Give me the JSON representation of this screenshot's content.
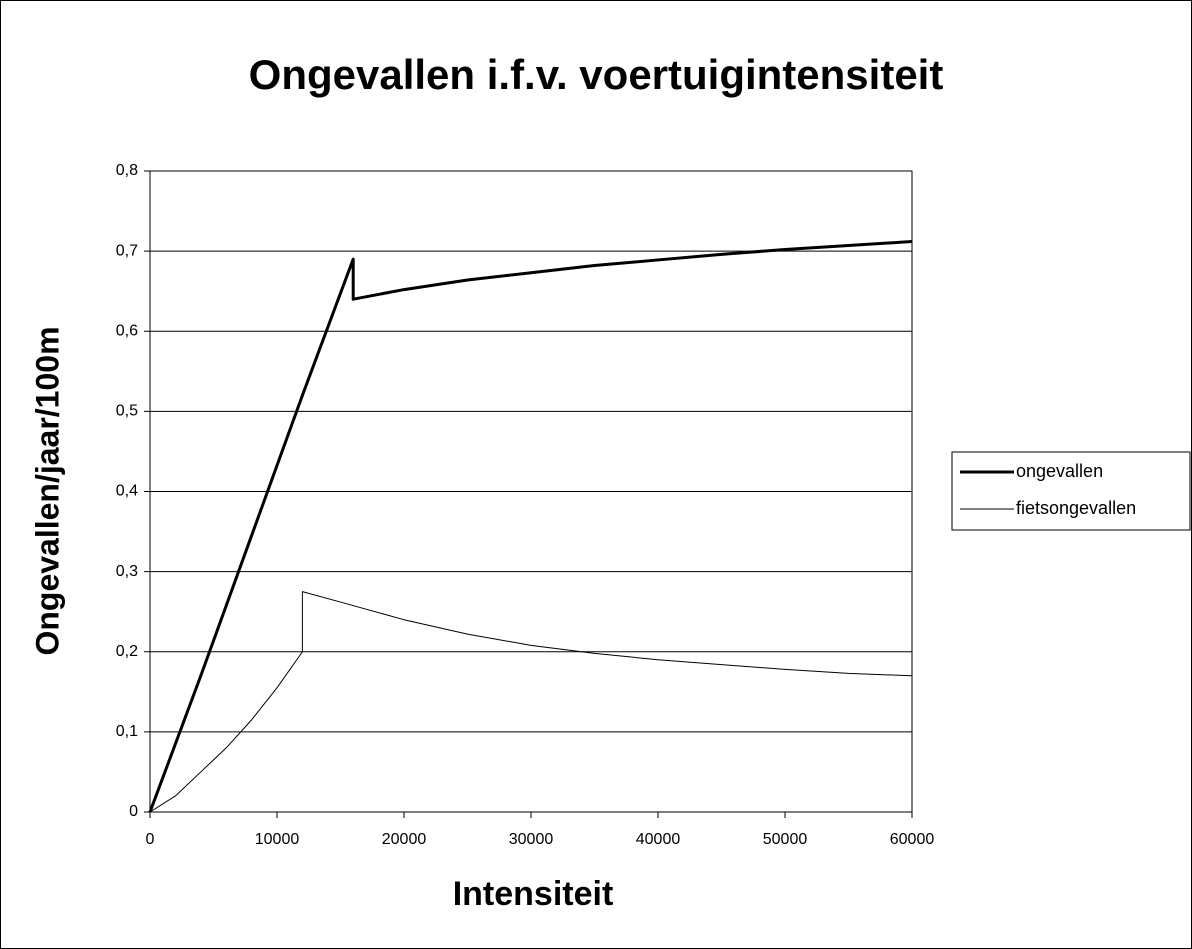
{
  "chart_data": {
    "type": "line",
    "title": "Ongevallen i.f.v. voertuigintensiteit",
    "x_label": "Intensiteit",
    "y_label": "Ongevallen/jaar/100m",
    "xlim": [
      0,
      60000
    ],
    "xticks": [
      0,
      10000,
      20000,
      30000,
      40000,
      50000,
      60000
    ],
    "ylim": [
      0,
      0.8
    ],
    "yticks": [
      0,
      {
        "value": 0.1,
        "label": "0,1"
      },
      {
        "value": 0.2,
        "label": "0,2"
      },
      {
        "value": 0.3,
        "label": "0,3"
      },
      {
        "value": 0.4,
        "label": "0,4"
      },
      {
        "value": 0.5,
        "label": "0,5"
      },
      {
        "value": 0.6,
        "label": "0,6"
      },
      {
        "value": 0.7,
        "label": "0,7"
      },
      {
        "value": 0.8,
        "label": "0,8"
      }
    ],
    "grid": true,
    "legend": "right",
    "series": [
      {
        "name": "ongevallen",
        "color": "#000000",
        "line_width": 3,
        "x": [
          0,
          4000,
          8000,
          12000,
          16000,
          16000,
          20000,
          25000,
          30000,
          35000,
          40000,
          45000,
          50000,
          55000,
          60000
        ],
        "values": [
          0,
          0.17,
          0.345,
          0.52,
          0.69,
          0.64,
          0.652,
          0.664,
          0.673,
          0.682,
          0.689,
          0.696,
          0.702,
          0.707,
          0.712
        ]
      },
      {
        "name": "fietsongevallen",
        "color": "#000000",
        "line_width": 1,
        "x": [
          0,
          2000,
          4000,
          6000,
          8000,
          10000,
          12000,
          12000,
          15000,
          20000,
          25000,
          30000,
          35000,
          40000,
          45000,
          50000,
          55000,
          60000
        ],
        "values": [
          0,
          0.02,
          0.05,
          0.08,
          0.115,
          0.155,
          0.2,
          0.275,
          0.262,
          0.24,
          0.222,
          0.208,
          0.198,
          0.19,
          0.184,
          0.178,
          0.173,
          0.17
        ]
      }
    ]
  }
}
